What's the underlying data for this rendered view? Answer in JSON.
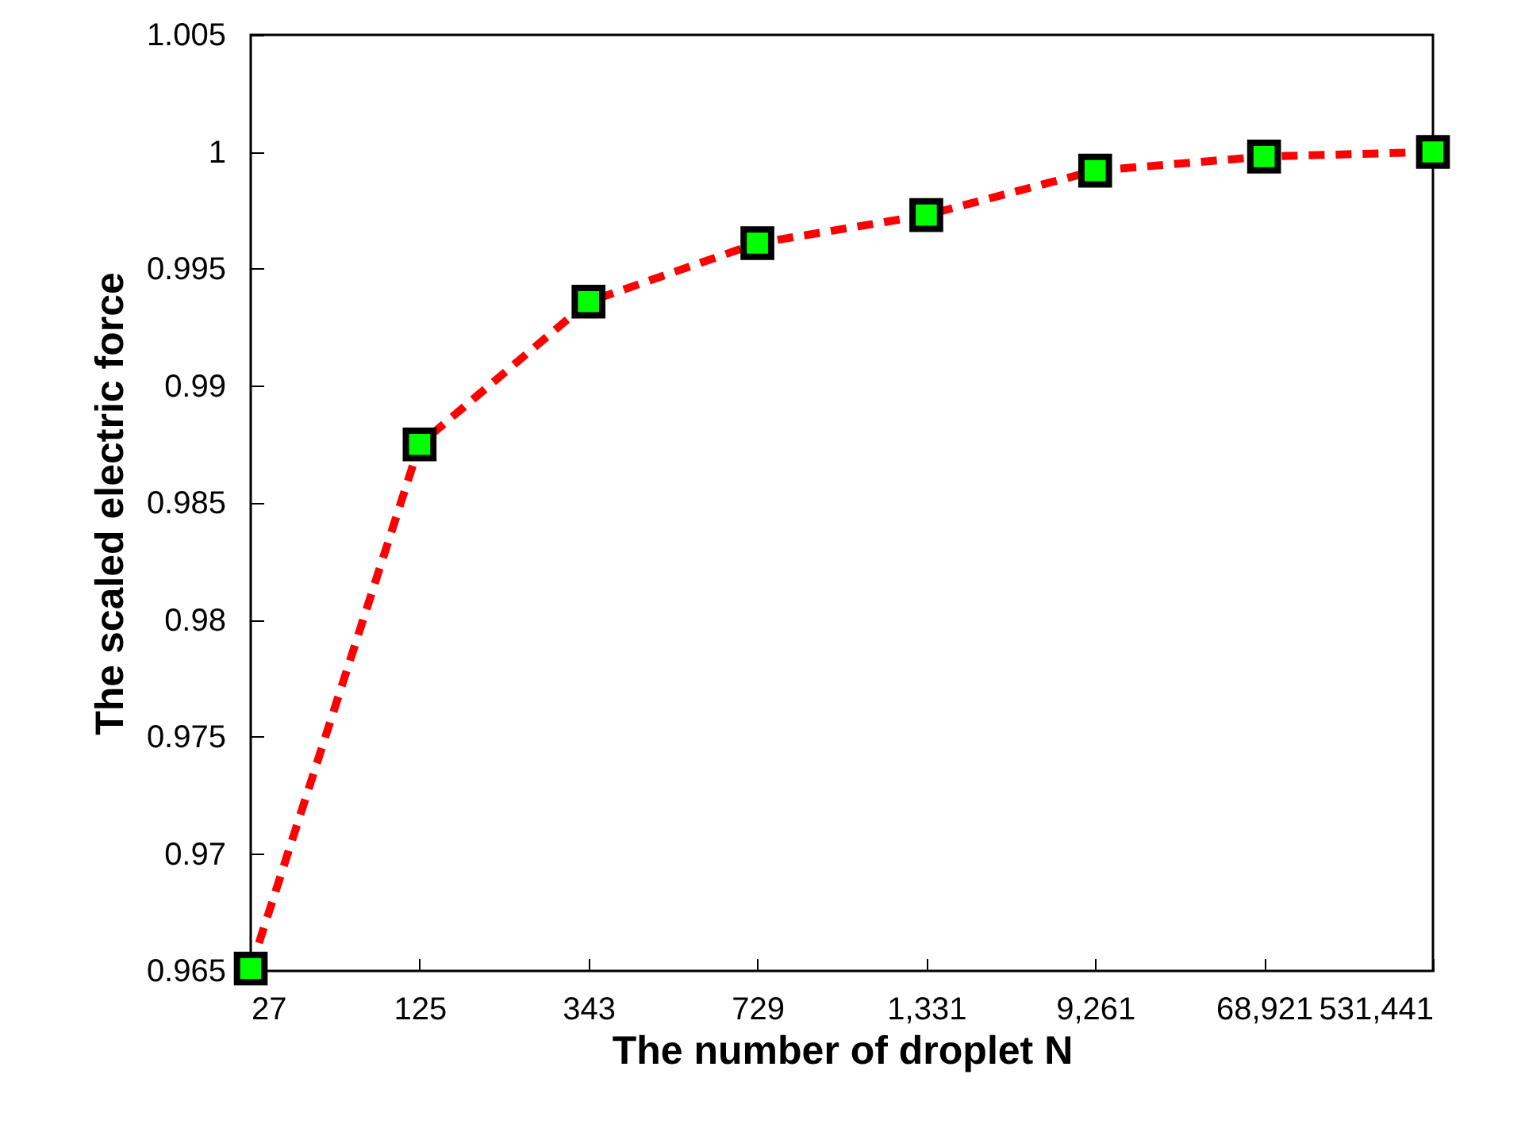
{
  "chart_data": {
    "type": "line",
    "xlabel": "The number of droplet N",
    "ylabel": "The scaled electric force",
    "categories": [
      "27",
      "125",
      "343",
      "729",
      "1,331",
      "9,261",
      "68,921",
      "531,441"
    ],
    "series": [
      {
        "color": "#ff0000",
        "colors": [
          "#00ff00",
          "#00ff00",
          "#00ff00",
          "#00ff00",
          "#00ff00",
          "#00ff00",
          "#00ff00",
          "#00ff00"
        ],
        "values": [
          0.9651,
          0.9875,
          0.9936,
          0.9961,
          0.9973,
          0.9992,
          0.9998,
          1.0
        ]
      }
    ],
    "ylim": [
      0.965,
      1.005
    ],
    "yticks": [
      0.965,
      0.97,
      0.975,
      0.98,
      0.985,
      0.99,
      0.995,
      1,
      1.005
    ],
    "grid": false,
    "marker": "square",
    "line_style": "dashed"
  }
}
